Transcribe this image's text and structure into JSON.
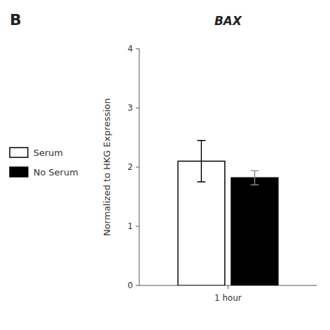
{
  "chart_data": {
    "type": "bar",
    "title": "BAX",
    "annotations": [
      "B"
    ],
    "ylabel": "Normalized to HKG Expression",
    "categories": [
      "1 hour"
    ],
    "series": [
      {
        "name": "Serum",
        "color": "#ffffff",
        "values": [
          2.1
        ],
        "errors": [
          0.35
        ]
      },
      {
        "name": "No Serum",
        "color": "#000000",
        "values": [
          1.82
        ],
        "errors": [
          0.12
        ]
      }
    ],
    "ylim": [
      0,
      4
    ],
    "yticks": [
      0,
      1,
      2,
      3,
      4
    ],
    "grid": false,
    "legend": "left"
  }
}
